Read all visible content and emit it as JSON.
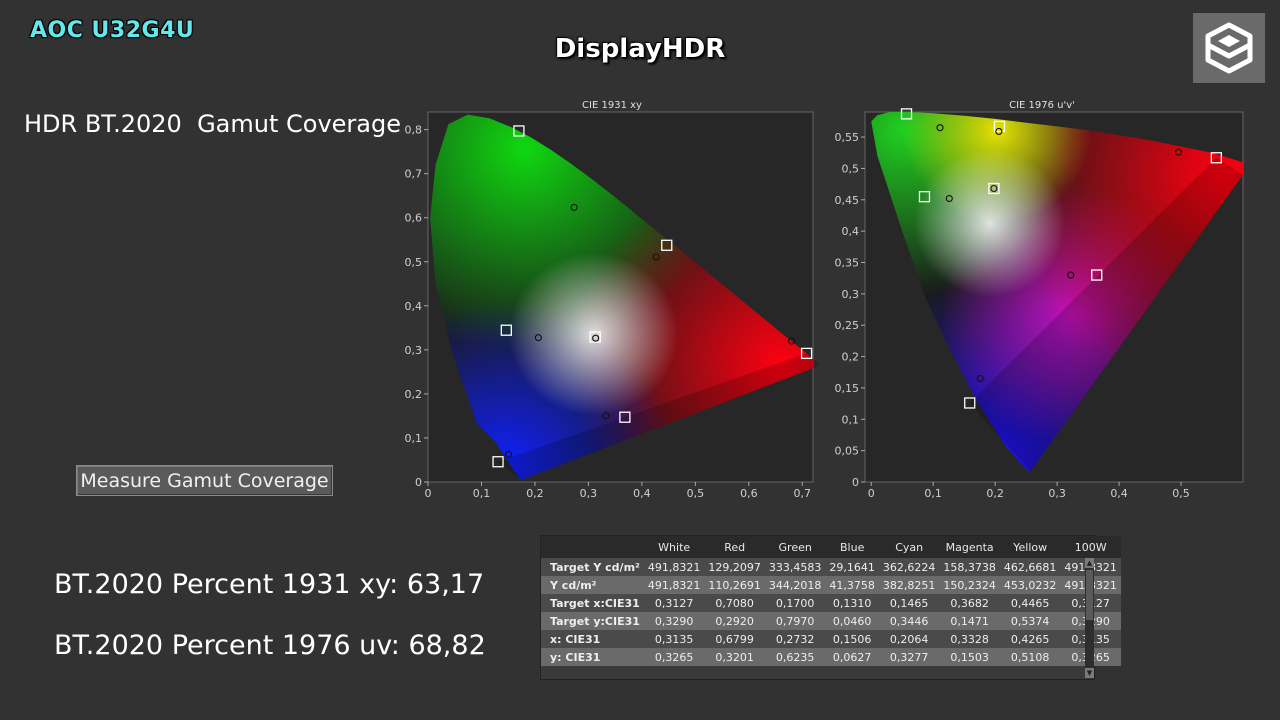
{
  "overlay": {
    "model": "AOC U32G4U",
    "title": "DisplayHDR",
    "logo_icon": "cube-logo-icon"
  },
  "heading": "HDR BT.2020  Gamut Coverage",
  "measure_button": "Measure Gamut Coverage",
  "percent_1931": "BT.2020 Percent 1931 xy: 63,17",
  "percent_1976": "BT.2020 Percent 1976 uv: 68,82",
  "chart_data": [
    {
      "type": "scatter",
      "title": "CIE 1931 xy",
      "xlim": [
        0,
        0.72
      ],
      "ylim": [
        0,
        0.84
      ],
      "x_ticks": [
        "0",
        "0,1",
        "0,2",
        "0,3",
        "0,4",
        "0,5",
        "0,6",
        "0,7"
      ],
      "y_ticks": [
        "0",
        "0,1",
        "0,2",
        "0,3",
        "0,4",
        "0,5",
        "0,6",
        "0,7",
        "0,8"
      ],
      "targets": [
        {
          "x": 0.708,
          "y": 0.292
        },
        {
          "x": 0.17,
          "y": 0.797
        },
        {
          "x": 0.131,
          "y": 0.046
        },
        {
          "x": 0.1465,
          "y": 0.3446
        },
        {
          "x": 0.3682,
          "y": 0.1471
        },
        {
          "x": 0.4465,
          "y": 0.5374
        },
        {
          "x": 0.3127,
          "y": 0.329
        }
      ],
      "measured": [
        {
          "x": 0.6799,
          "y": 0.3201
        },
        {
          "x": 0.2732,
          "y": 0.6235
        },
        {
          "x": 0.1506,
          "y": 0.0627
        },
        {
          "x": 0.2064,
          "y": 0.3277
        },
        {
          "x": 0.3328,
          "y": 0.1503
        },
        {
          "x": 0.4265,
          "y": 0.5108
        },
        {
          "x": 0.3135,
          "y": 0.3265
        }
      ]
    },
    {
      "type": "scatter",
      "title": "CIE 1976 u'v'",
      "xlim": [
        -0.01,
        0.6
      ],
      "ylim": [
        0,
        0.59
      ],
      "x_ticks": [
        "0",
        "0,1",
        "0,2",
        "0,3",
        "0,4",
        "0,5"
      ],
      "y_ticks": [
        "0",
        "0,05",
        "0,1",
        "0,15",
        "0,2",
        "0,25",
        "0,3",
        "0,35",
        "0,4",
        "0,45",
        "0,5",
        "0,55"
      ],
      "targets": [
        {
          "x": 0.557,
          "y": 0.517
        },
        {
          "x": 0.057,
          "y": 0.587
        },
        {
          "x": 0.159,
          "y": 0.126
        },
        {
          "x": 0.086,
          "y": 0.455
        },
        {
          "x": 0.364,
          "y": 0.33
        },
        {
          "x": 0.207,
          "y": 0.567
        },
        {
          "x": 0.198,
          "y": 0.468
        }
      ],
      "measured": [
        {
          "x": 0.496,
          "y": 0.526
        },
        {
          "x": 0.111,
          "y": 0.565
        },
        {
          "x": 0.176,
          "y": 0.165
        },
        {
          "x": 0.126,
          "y": 0.452
        },
        {
          "x": 0.322,
          "y": 0.33
        },
        {
          "x": 0.206,
          "y": 0.559
        },
        {
          "x": 0.198,
          "y": 0.468
        }
      ]
    },
    {
      "type": "table",
      "columns": [
        "",
        "White",
        "Red",
        "Green",
        "Blue",
        "Cyan",
        "Magenta",
        "Yellow",
        "100W"
      ],
      "rows": [
        {
          "label": "Target Y cd/m²",
          "values": [
            "491,8321",
            "129,2097",
            "333,4583",
            "29,1641",
            "362,6224",
            "158,3738",
            "462,6681",
            "491,8321"
          ]
        },
        {
          "label": "Y cd/m²",
          "values": [
            "491,8321",
            "110,2691",
            "344,2018",
            "41,3758",
            "382,8251",
            "150,2324",
            "453,0232",
            "491,8321"
          ]
        },
        {
          "label": "Target x:CIE31",
          "values": [
            "0,3127",
            "0,7080",
            "0,1700",
            "0,1310",
            "0,1465",
            "0,3682",
            "0,4465",
            "0,3127"
          ]
        },
        {
          "label": "Target y:CIE31",
          "values": [
            "0,3290",
            "0,2920",
            "0,7970",
            "0,0460",
            "0,3446",
            "0,1471",
            "0,5374",
            "0,3290"
          ]
        },
        {
          "label": "x: CIE31",
          "values": [
            "0,3135",
            "0,6799",
            "0,2732",
            "0,1506",
            "0,2064",
            "0,3328",
            "0,4265",
            "0,3135"
          ]
        },
        {
          "label": "y: CIE31",
          "values": [
            "0,3265",
            "0,3201",
            "0,6235",
            "0,0627",
            "0,3277",
            "0,1503",
            "0,5108",
            "0,3265"
          ]
        }
      ]
    }
  ]
}
